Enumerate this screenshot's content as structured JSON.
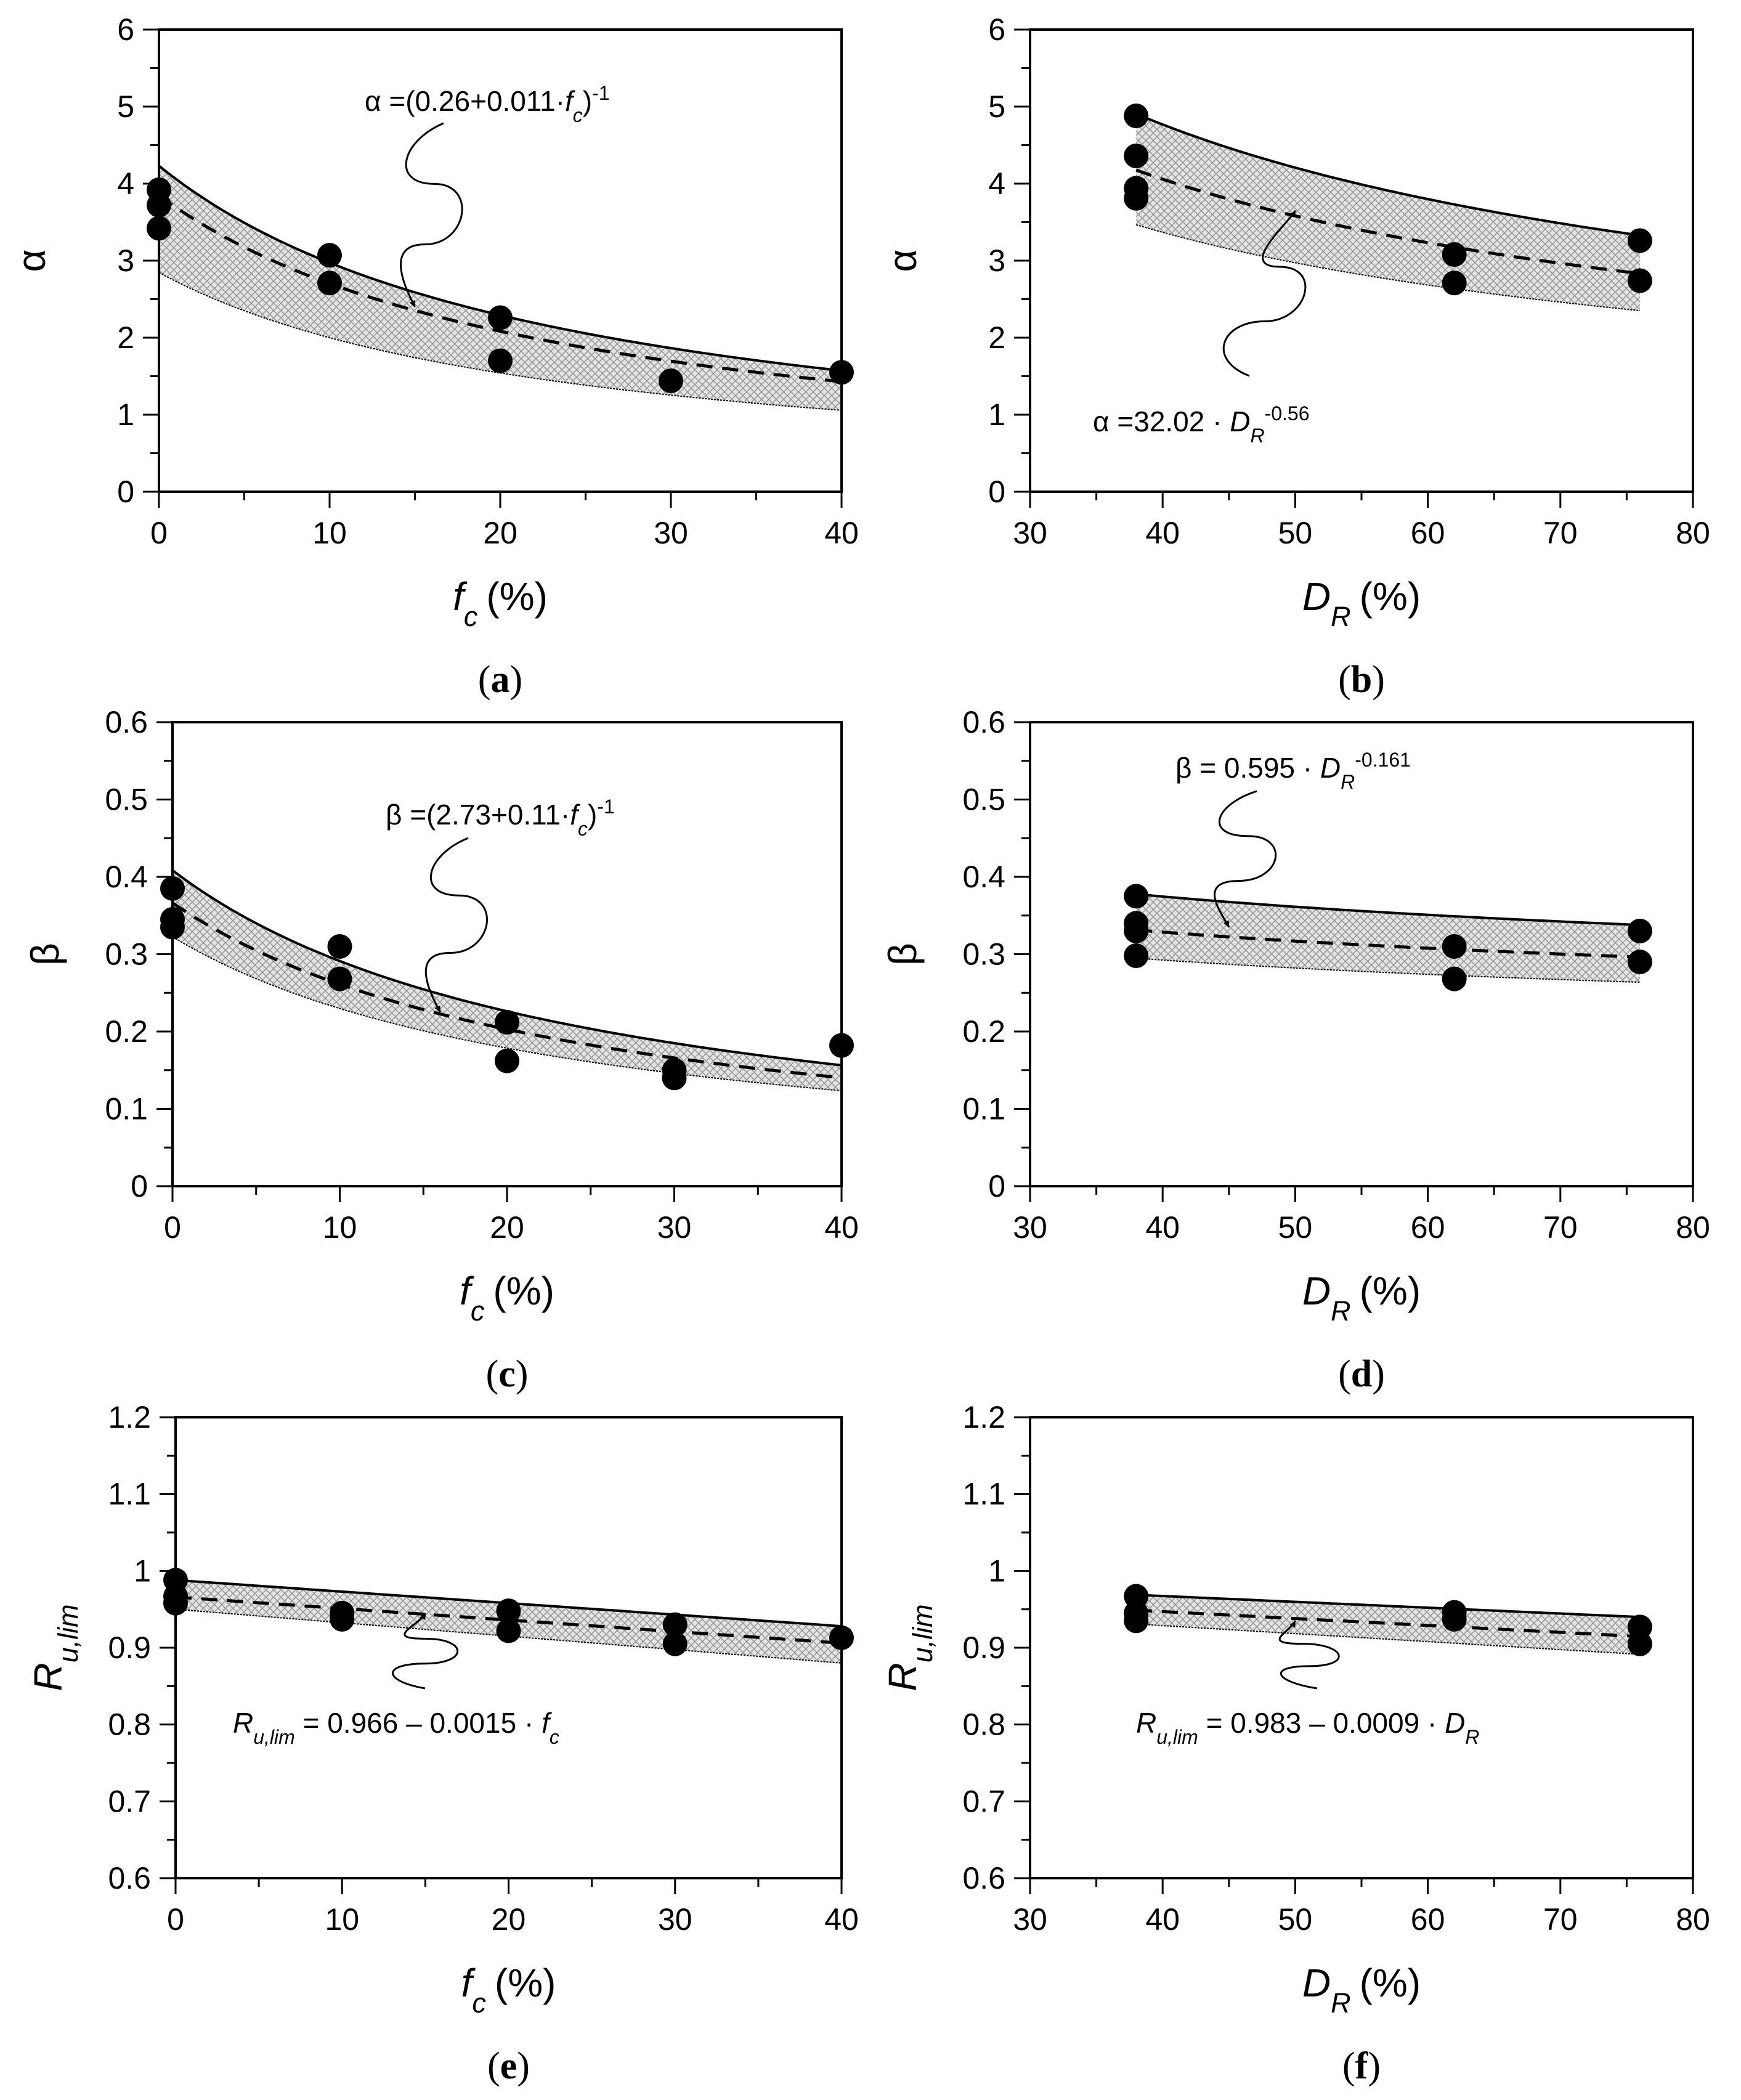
{
  "figure": {
    "colors": {
      "ink": "#000000",
      "band": "#b8b8b8",
      "background": "#ffffff"
    },
    "panel_order": [
      "a",
      "b",
      "c",
      "d",
      "e",
      "f"
    ]
  },
  "chart_data": [
    {
      "id": "a",
      "type": "scatter",
      "caption": "(a)",
      "xlabel": {
        "main": "f",
        "sub": "c",
        "unit": "(%)"
      },
      "ylabel": {
        "symbol": "α"
      },
      "xlim": [
        0,
        40
      ],
      "ylim": [
        0,
        6
      ],
      "xticks": [
        0,
        10,
        20,
        30,
        40
      ],
      "yticks": [
        0,
        1,
        2,
        3,
        4,
        5,
        6
      ],
      "ytick_labels": [
        "0",
        "1",
        "2",
        "3",
        "4",
        "5",
        "6"
      ],
      "points": {
        "x": [
          0,
          0,
          0,
          10,
          10,
          20,
          20,
          30,
          40
        ],
        "y": [
          3.92,
          3.72,
          3.42,
          3.07,
          2.71,
          2.26,
          1.7,
          1.44,
          1.55
        ]
      },
      "fit": {
        "model": "inverse_linear",
        "a": 0.26,
        "b": 0.011,
        "dashed": true
      },
      "band": {
        "upper_factor": 1.1,
        "lower_factor": 0.74
      },
      "equation": {
        "parts": [
          {
            "t": "α =(0.26+0.011·"
          },
          {
            "t": "f",
            "i": true
          },
          {
            "t": "c",
            "sub": true,
            "i": true
          },
          {
            "t": ")"
          },
          {
            "t": "-1",
            "sup": true
          }
        ]
      },
      "arrow_to": [
        15,
        2.4
      ]
    },
    {
      "id": "b",
      "type": "scatter",
      "caption": "(b)",
      "xlabel": {
        "main": "D",
        "sub": "R",
        "unit": "(%)"
      },
      "ylabel": {
        "symbol": "α"
      },
      "xlim": [
        30,
        80
      ],
      "ylim": [
        0,
        6
      ],
      "xticks": [
        30,
        40,
        50,
        60,
        70,
        80
      ],
      "yticks": [
        0,
        1,
        2,
        3,
        4,
        5,
        6
      ],
      "ytick_labels": [
        "0",
        "1",
        "2",
        "3",
        "4",
        "5",
        "6"
      ],
      "points": {
        "x": [
          38,
          38,
          38,
          38,
          62,
          62,
          76,
          76
        ],
        "y": [
          4.88,
          4.36,
          3.94,
          3.81,
          3.08,
          2.71,
          3.26,
          2.74
        ]
      },
      "fit": {
        "model": "power",
        "a": 32.02,
        "b": -0.56,
        "dashed": true
      },
      "band": {
        "upper_factor": 1.175,
        "lower_factor": 0.83
      },
      "equation": {
        "parts": [
          {
            "t": "α =32.02 · "
          },
          {
            "t": "D",
            "i": true
          },
          {
            "t": "R",
            "sub": true,
            "i": true
          },
          {
            "t": "-0.56",
            "sup": true
          }
        ]
      },
      "arrow_to": [
        50,
        3.65
      ]
    },
    {
      "id": "c",
      "type": "scatter",
      "caption": "(c)",
      "xlabel": {
        "main": "f",
        "sub": "c",
        "unit": "(%)"
      },
      "ylabel": {
        "symbol": "β"
      },
      "xlim": [
        0,
        40
      ],
      "ylim": [
        0,
        0.6
      ],
      "xticks": [
        0,
        10,
        20,
        30,
        40
      ],
      "yticks": [
        0,
        0.1,
        0.2,
        0.3,
        0.4,
        0.5,
        0.6
      ],
      "ytick_labels": [
        "0",
        "0.1",
        "0.2",
        "0.3",
        "0.4",
        "0.5",
        "0.6"
      ],
      "points": {
        "x": [
          0,
          0,
          0,
          10,
          10,
          20,
          20,
          30,
          30,
          40
        ],
        "y": [
          0.385,
          0.345,
          0.335,
          0.31,
          0.268,
          0.212,
          0.162,
          0.15,
          0.14,
          0.182
        ]
      },
      "fit": {
        "model": "inverse_linear",
        "a": 2.73,
        "b": 0.11,
        "dashed": true
      },
      "band": {
        "upper_factor": 1.115,
        "lower_factor": 0.88
      },
      "equation": {
        "parts": [
          {
            "t": "β =(2.73+0.11·"
          },
          {
            "t": "f",
            "i": true
          },
          {
            "t": "c",
            "sub": true,
            "i": true
          },
          {
            "t": ")"
          },
          {
            "t": "-1",
            "sup": true
          }
        ]
      },
      "arrow_to": [
        16,
        0.225
      ]
    },
    {
      "id": "d",
      "type": "scatter",
      "caption": "(d)",
      "xlabel": {
        "main": "D",
        "sub": "R",
        "unit": "(%)"
      },
      "ylabel": {
        "symbol": "β"
      },
      "xlim": [
        30,
        80
      ],
      "ylim": [
        0,
        0.6
      ],
      "xticks": [
        30,
        40,
        50,
        60,
        70,
        80
      ],
      "yticks": [
        0,
        0.1,
        0.2,
        0.3,
        0.4,
        0.5,
        0.6
      ],
      "ytick_labels": [
        "0",
        "0.1",
        "0.2",
        "0.3",
        "0.4",
        "0.5",
        "0.6"
      ],
      "points": {
        "x": [
          38,
          38,
          38,
          38,
          62,
          62,
          76,
          76
        ],
        "y": [
          0.375,
          0.34,
          0.33,
          0.298,
          0.31,
          0.268,
          0.33,
          0.29
        ]
      },
      "fit": {
        "model": "power",
        "a": 0.595,
        "b": -0.161,
        "dashed": true
      },
      "band": {
        "upper_factor": 1.14,
        "lower_factor": 0.89
      },
      "equation": {
        "parts": [
          {
            "t": "β  = 0.595 · "
          },
          {
            "t": "D",
            "i": true
          },
          {
            "t": "R",
            "sub": true,
            "i": true
          },
          {
            "t": "-0.161",
            "sup": true
          }
        ]
      },
      "arrow_to": [
        45,
        0.335
      ]
    },
    {
      "id": "e",
      "type": "scatter",
      "caption": "(e)",
      "xlabel": {
        "main": "f",
        "sub": "c",
        "unit": "(%)"
      },
      "ylabel": {
        "main": "R",
        "sub": "u,lim"
      },
      "xlim": [
        0,
        40
      ],
      "ylim": [
        0.6,
        1.2
      ],
      "xticks": [
        0,
        10,
        20,
        30,
        40
      ],
      "yticks": [
        0.6,
        0.7,
        0.8,
        0.9,
        1.0,
        1.1,
        1.2
      ],
      "ytick_labels": [
        "0.6",
        "0.7",
        "0.8",
        "0.9",
        "1",
        "1.1",
        "1.2"
      ],
      "points": {
        "x": [
          0,
          0,
          0,
          10,
          10,
          20,
          20,
          30,
          30,
          40
        ],
        "y": [
          0.988,
          0.967,
          0.958,
          0.945,
          0.937,
          0.948,
          0.922,
          0.93,
          0.905,
          0.913
        ]
      },
      "fit": {
        "model": "linear",
        "a": 0.966,
        "b": -0.0015,
        "dashed": true
      },
      "band": {
        "upper_offset": 0.022,
        "lower_offset": -0.016,
        "upper_slope_extra": 0.0,
        "lower_slope_extra": -0.00025
      },
      "equation": {
        "parts": [
          {
            "t": "R",
            "i": true
          },
          {
            "t": "u,lim",
            "sub": true,
            "i": true
          },
          {
            "t": " = 0.966 – 0.0015 · "
          },
          {
            "t": "f",
            "i": true
          },
          {
            "t": "c",
            "sub": true,
            "i": true
          }
        ]
      },
      "arrow_to": [
        15,
        0.945
      ]
    },
    {
      "id": "f",
      "type": "scatter",
      "caption": "(f)",
      "xlabel": {
        "main": "D",
        "sub": "R",
        "unit": "(%)"
      },
      "ylabel": {
        "main": "R",
        "sub": "u,lim"
      },
      "xlim": [
        30,
        80
      ],
      "ylim": [
        0.6,
        1.2
      ],
      "xticks": [
        30,
        40,
        50,
        60,
        70,
        80
      ],
      "yticks": [
        0.6,
        0.7,
        0.8,
        0.9,
        1.0,
        1.1,
        1.2
      ],
      "ytick_labels": [
        "0.6",
        "0.7",
        "0.8",
        "0.9",
        "1",
        "1.1",
        "1.2"
      ],
      "points": {
        "x": [
          38,
          38,
          38,
          62,
          62,
          76,
          76
        ],
        "y": [
          0.967,
          0.945,
          0.935,
          0.946,
          0.937,
          0.927,
          0.905
        ]
      },
      "fit": {
        "model": "linear",
        "a": 0.983,
        "b": -0.0009,
        "dashed": true
      },
      "band": {
        "upper_offset": 0.02,
        "lower_offset": -0.018,
        "upper_slope_extra": 0.00014,
        "lower_slope_extra": -0.00014
      },
      "equation": {
        "parts": [
          {
            "t": "R",
            "i": true
          },
          {
            "t": "u,lim",
            "sub": true,
            "i": true
          },
          {
            "t": " = 0.983 – 0.0009 · "
          },
          {
            "t": "D",
            "i": true
          },
          {
            "t": "R",
            "sub": true,
            "i": true
          }
        ]
      },
      "arrow_to": [
        50,
        0.935
      ]
    }
  ]
}
